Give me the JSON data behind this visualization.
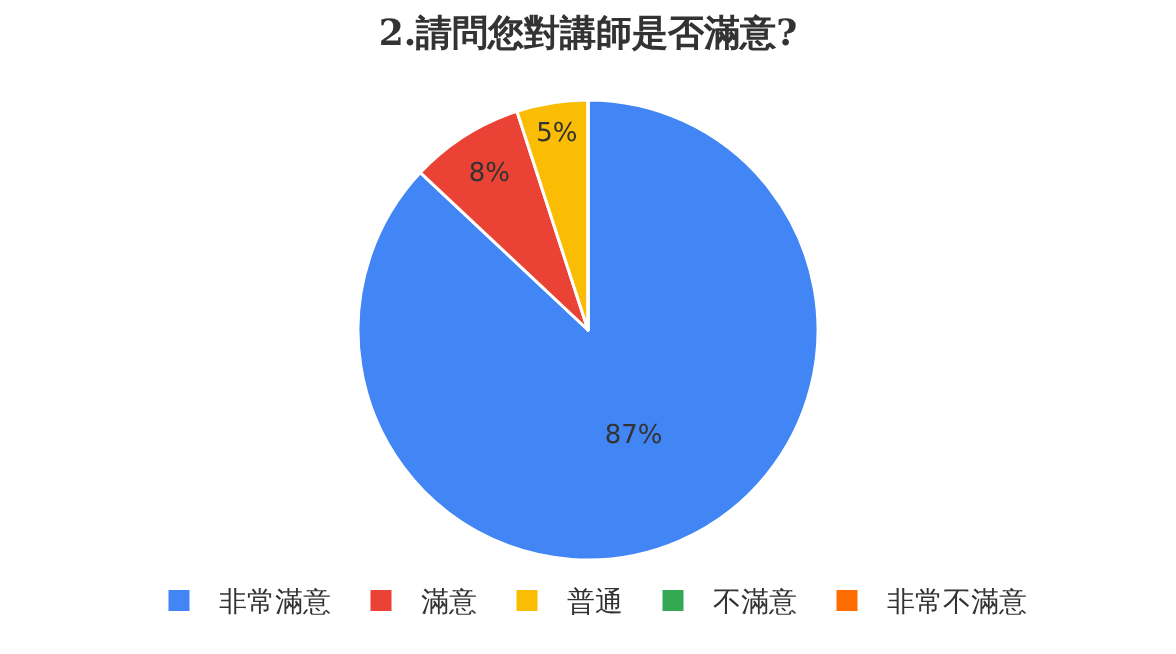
{
  "chart_data": {
    "type": "pie",
    "title": "2.請問您對講師是否滿意?",
    "categories": [
      "非常滿意",
      "滿意",
      "普通",
      "不滿意",
      "非常不滿意"
    ],
    "values": [
      87,
      8,
      5,
      0,
      0
    ],
    "value_labels": [
      "87%",
      "8%",
      "5%",
      null,
      null
    ],
    "colors": [
      "#4285f4",
      "#ea4335",
      "#fbbc04",
      "#34a853",
      "#ff6d01"
    ],
    "legend": "bottom"
  }
}
